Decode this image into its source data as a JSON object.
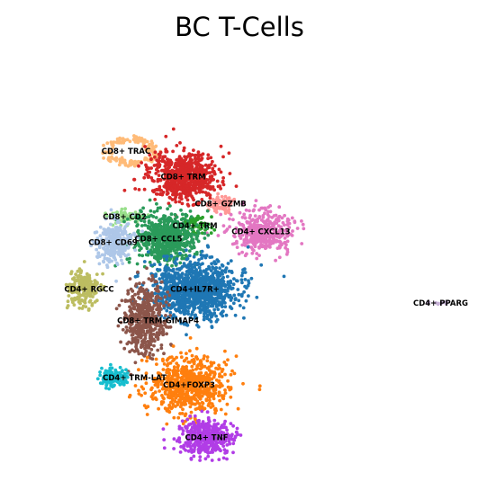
{
  "chart_data": {
    "type": "scatter",
    "title": "BC T-Cells",
    "xlabel": "",
    "ylabel": "",
    "axes_visible": false,
    "grid": false,
    "legend": "on data",
    "clusters": [
      {
        "name": "CD8+ TRAC",
        "color": "#ffbb78",
        "center": [
          -5.0,
          9.0
        ],
        "points": 140
      },
      {
        "name": "CD8+ TRM",
        "color": "#d62728",
        "center": [
          -0.5,
          6.8
        ],
        "points": 700
      },
      {
        "name": "CD8+ GZMB",
        "color": "#ff9896",
        "center": [
          2.7,
          4.5
        ],
        "points": 90
      },
      {
        "name": "CD4+ CXCL13",
        "color": "#e377c2",
        "center": [
          6.3,
          2.1
        ],
        "points": 420
      },
      {
        "name": "CD8+ CD2",
        "color": "#98df8a",
        "center": [
          -5.5,
          3.4
        ],
        "points": 70
      },
      {
        "name": "CD4+ TRM",
        "color": "#2ca02c",
        "center": [
          0.5,
          2.6
        ],
        "points": 60
      },
      {
        "name": "CD8+ CCL5",
        "color": "#2a9a5a",
        "center": [
          -2.0,
          1.5
        ],
        "points": 600
      },
      {
        "name": "CD8+ CD69",
        "color": "#aec7e8",
        "center": [
          -6.5,
          1.2
        ],
        "points": 280
      },
      {
        "name": "CD4+ RGCC",
        "color": "#bcbd61",
        "center": [
          -9.0,
          -2.8
        ],
        "points": 220
      },
      {
        "name": "CD4+IL7R+",
        "color": "#1f77b4",
        "center": [
          0.5,
          -2.8
        ],
        "points": 1100
      },
      {
        "name": "CD8+ TRM-GIMAP4",
        "color": "#8c564b",
        "center": [
          -3.8,
          -5.5
        ],
        "points": 480
      },
      {
        "name": "CD4+ TRM-LAT",
        "color": "#17becf",
        "center": [
          -6.5,
          -10.4
        ],
        "points": 150
      },
      {
        "name": "CD4+FOXP3",
        "color": "#ff7f0e",
        "center": [
          0.0,
          -11.0
        ],
        "points": 700
      },
      {
        "name": "CD4+ TNF",
        "color": "#b13de6",
        "center": [
          1.5,
          -15.5
        ],
        "points": 420
      },
      {
        "name": "CD4+ PPARG",
        "color": "#c5b0d5",
        "center": [
          21.5,
          -4.0
        ],
        "points": 12
      }
    ]
  }
}
